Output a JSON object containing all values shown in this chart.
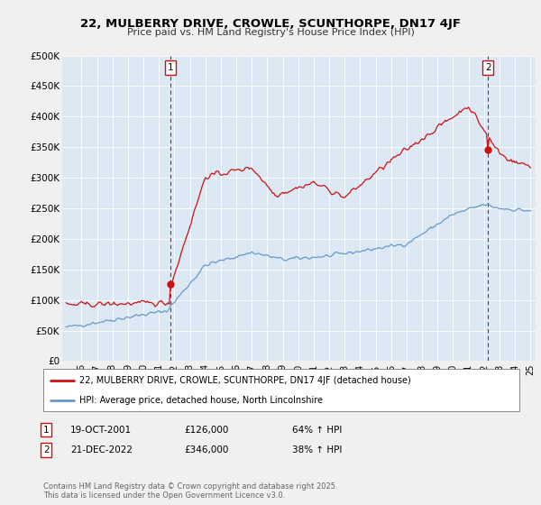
{
  "title": "22, MULBERRY DRIVE, CROWLE, SCUNTHORPE, DN17 4JF",
  "subtitle": "Price paid vs. HM Land Registry's House Price Index (HPI)",
  "background_color": "#f0f0f0",
  "plot_bg_color": "#dce9f5",
  "ylim": [
    0,
    500000
  ],
  "yticks": [
    0,
    50000,
    100000,
    150000,
    200000,
    250000,
    300000,
    350000,
    400000,
    450000,
    500000
  ],
  "ytick_labels": [
    "£0",
    "£50K",
    "£100K",
    "£150K",
    "£200K",
    "£250K",
    "£300K",
    "£350K",
    "£400K",
    "£450K",
    "£500K"
  ],
  "hpi_color": "#6699cc",
  "price_color": "#cc1111",
  "sale1_price": 126000,
  "sale2_price": 346000,
  "sale1_month": 81,
  "sale2_month": 327,
  "legend_line1": "22, MULBERRY DRIVE, CROWLE, SCUNTHORPE, DN17 4JF (detached house)",
  "legend_line2": "HPI: Average price, detached house, North Lincolnshire",
  "sale1_info_date": "19-OCT-2001",
  "sale1_info_price": "£126,000",
  "sale1_info_hpi": "64% ↑ HPI",
  "sale2_info_date": "21-DEC-2022",
  "sale2_info_price": "£346,000",
  "sale2_info_hpi": "38% ↑ HPI",
  "footer": "Contains HM Land Registry data © Crown copyright and database right 2025.\nThis data is licensed under the Open Government Licence v3.0.",
  "start_year": 1995,
  "end_year": 2025,
  "num_months": 361
}
